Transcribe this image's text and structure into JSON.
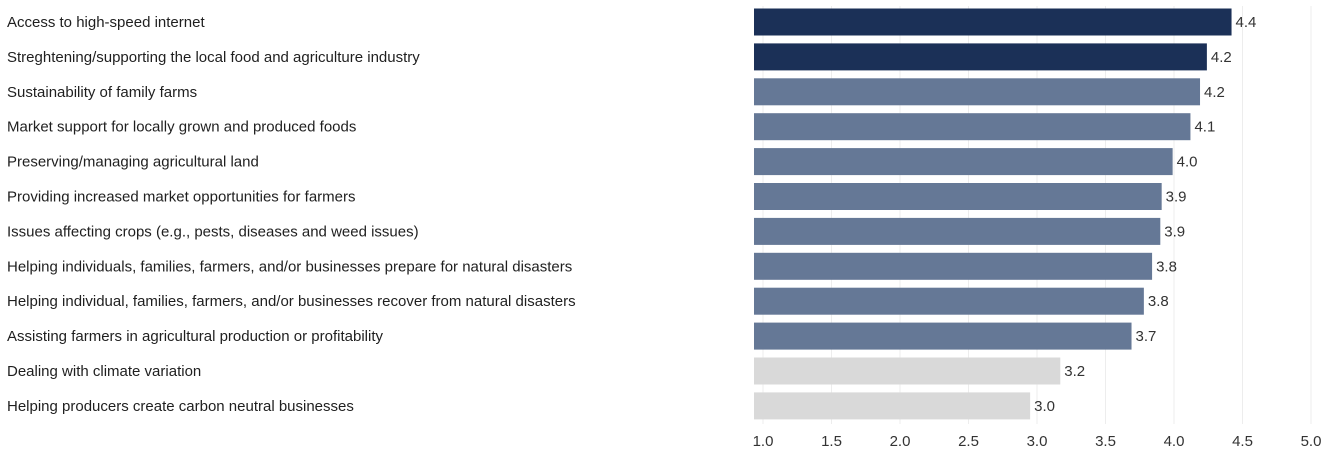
{
  "chart_data": {
    "type": "bar",
    "orientation": "horizontal",
    "categories": [
      "Access to high-speed internet",
      "Streghtening/supporting the local food and agriculture industry",
      "Sustainability of family farms",
      "Market support for locally grown and produced foods",
      "Preserving/managing agricultural land",
      "Providing increased market opportunities for farmers",
      "Issues affecting crops (e.g., pests, diseases and weed issues)",
      "Helping individuals, families, farmers, and/or businesses prepare for natural disasters",
      "Helping individual, families, farmers, and/or businesses recover from natural disasters",
      "Assisting farmers in agricultural production or profitability",
      "Dealing with climate variation",
      "Helping producers create carbon neutral businesses"
    ],
    "values": [
      4.42,
      4.24,
      4.19,
      4.12,
      3.99,
      3.91,
      3.9,
      3.84,
      3.78,
      3.69,
      3.17,
      2.95
    ],
    "value_labels": [
      "4.4",
      "4.2",
      "4.2",
      "4.1",
      "4.0",
      "3.9",
      "3.9",
      "3.8",
      "3.8",
      "3.7",
      "3.2",
      "3.0"
    ],
    "bar_colors": [
      "#1b3057",
      "#1b3057",
      "#657896",
      "#657896",
      "#657896",
      "#657896",
      "#657896",
      "#657896",
      "#657896",
      "#657896",
      "#d9d9d9",
      "#d9d9d9"
    ],
    "xlim": [
      1.0,
      5.0
    ],
    "ticks": [
      "1.0",
      "1.5",
      "2.0",
      "2.5",
      "3.0",
      "3.5",
      "4.0",
      "4.5",
      "5.0"
    ],
    "title": "",
    "xlabel": "",
    "ylabel": "",
    "grid": true,
    "legend": "none"
  }
}
